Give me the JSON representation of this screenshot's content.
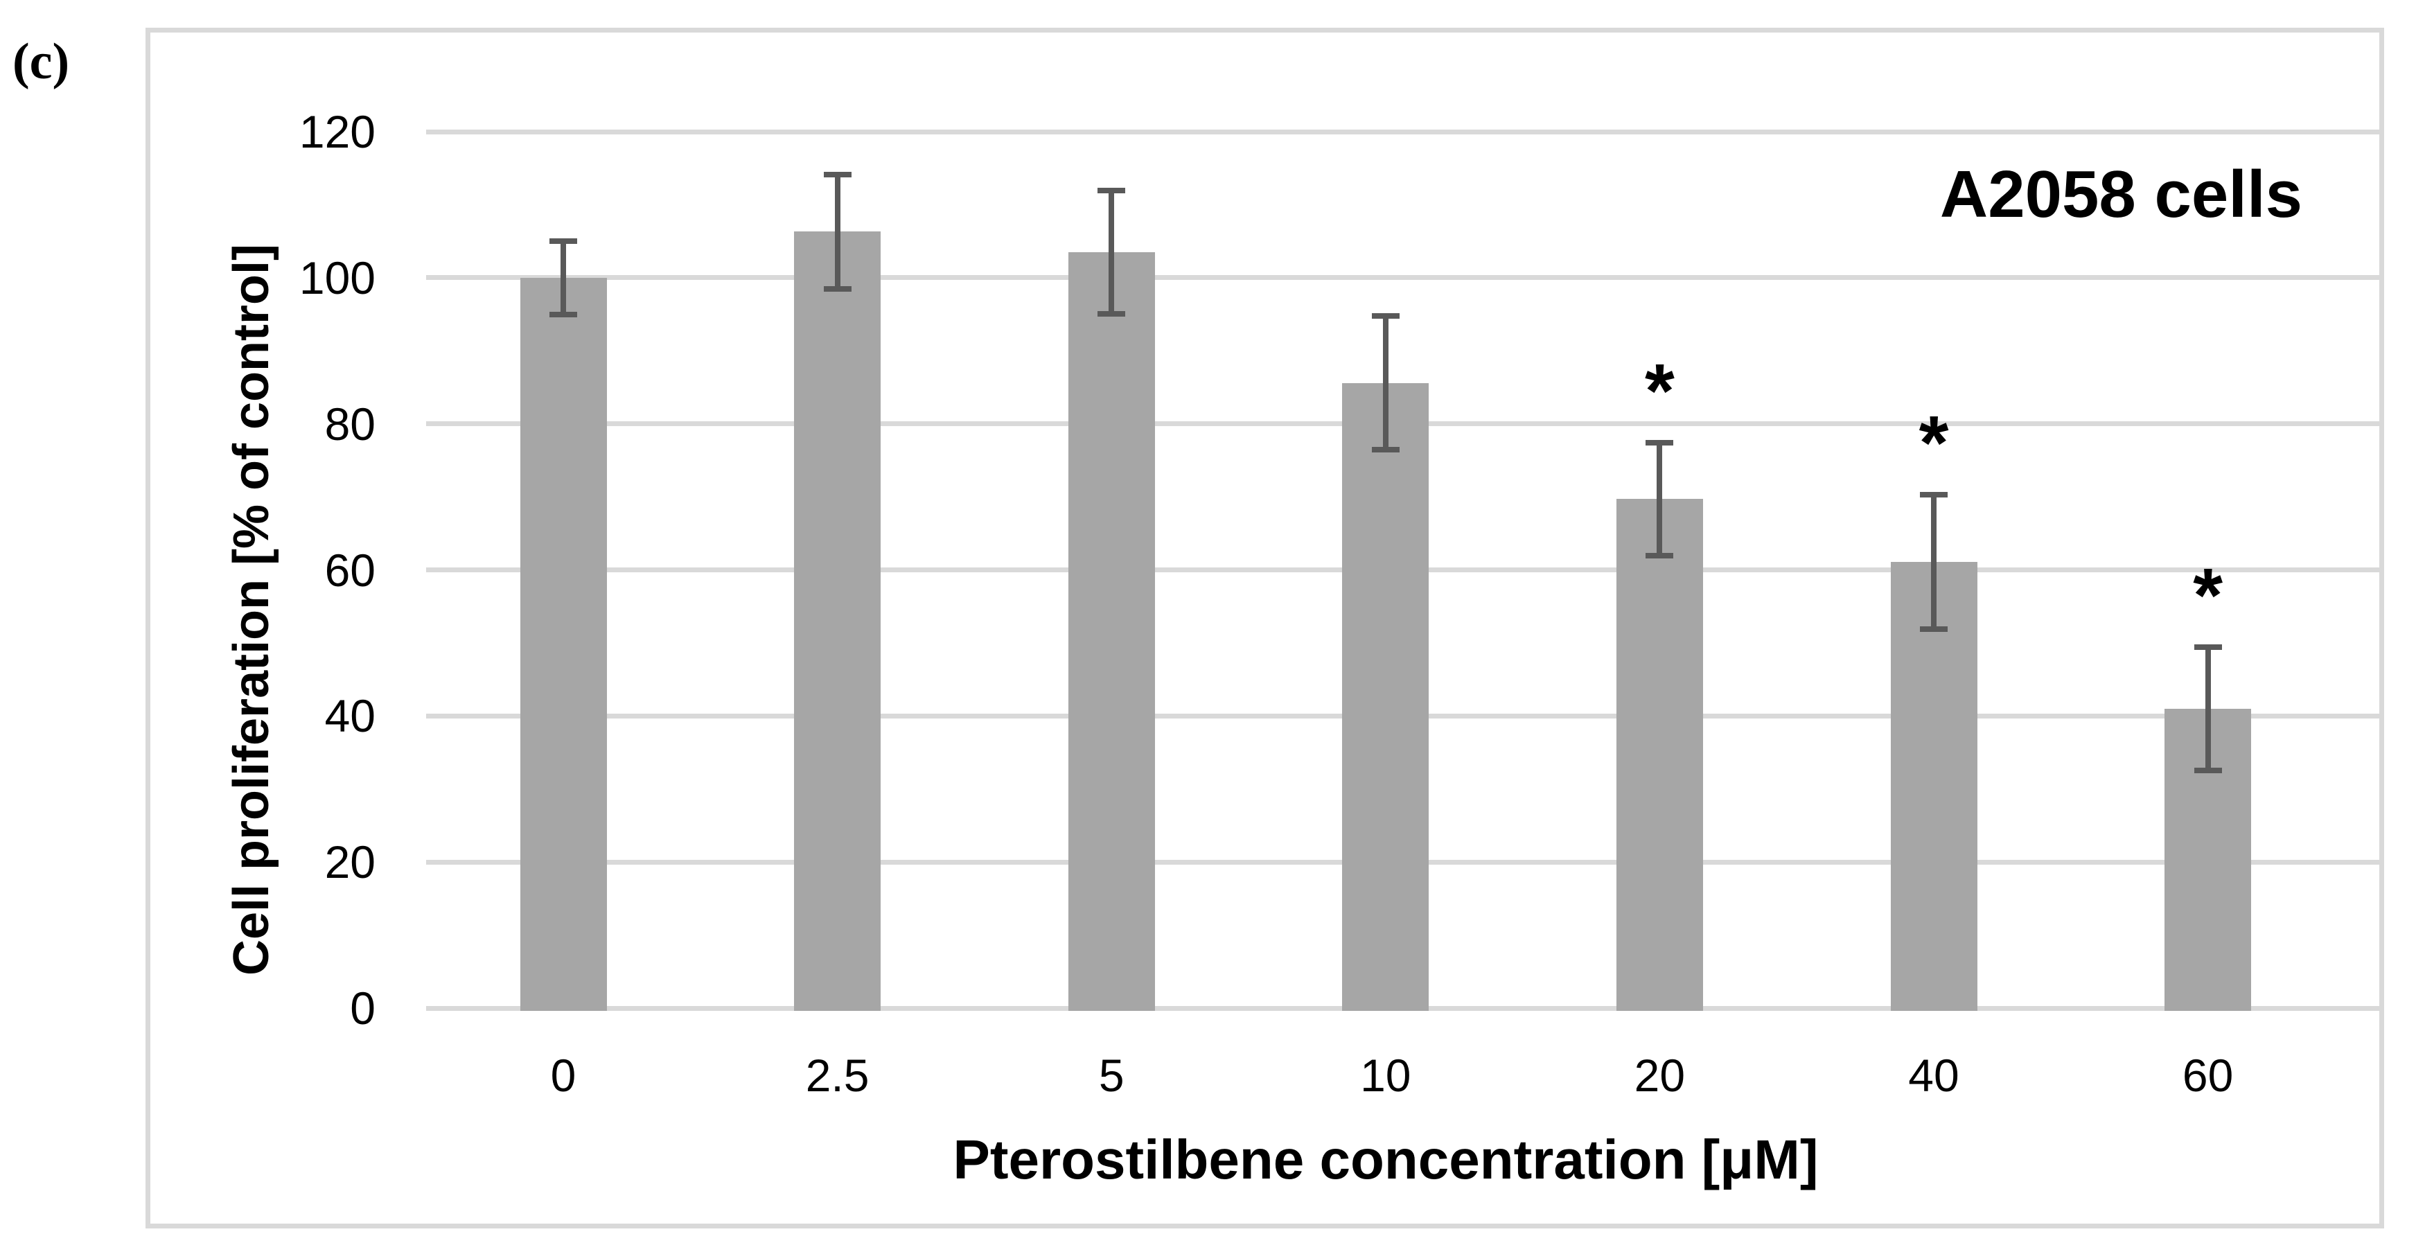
{
  "panel_label": "(c)",
  "chart_data": {
    "type": "bar",
    "title": "A2058 cells",
    "xlabel": "Pterostilbene concentration [μM]",
    "ylabel": "Cell proliferation [% of control]",
    "categories": [
      "0",
      "2.5",
      "5",
      "10",
      "20",
      "40",
      "60"
    ],
    "values": [
      100.0,
      106.3,
      103.5,
      85.6,
      69.7,
      61.1,
      41.0
    ],
    "errors": [
      5.4,
      8.2,
      8.8,
      9.5,
      8.1,
      9.6,
      8.8
    ],
    "significance": [
      "",
      "",
      "",
      "",
      "*",
      "*",
      "*"
    ],
    "yticks": [
      0,
      20,
      40,
      60,
      80,
      100,
      120
    ],
    "ylim": [
      0,
      120
    ],
    "grid": true,
    "legend": false,
    "bar_color": "#a6a6a6",
    "error_bar_color": "#595959",
    "gridline_color": "#d9d9d9",
    "box_border_color": "#d9d9d9"
  }
}
